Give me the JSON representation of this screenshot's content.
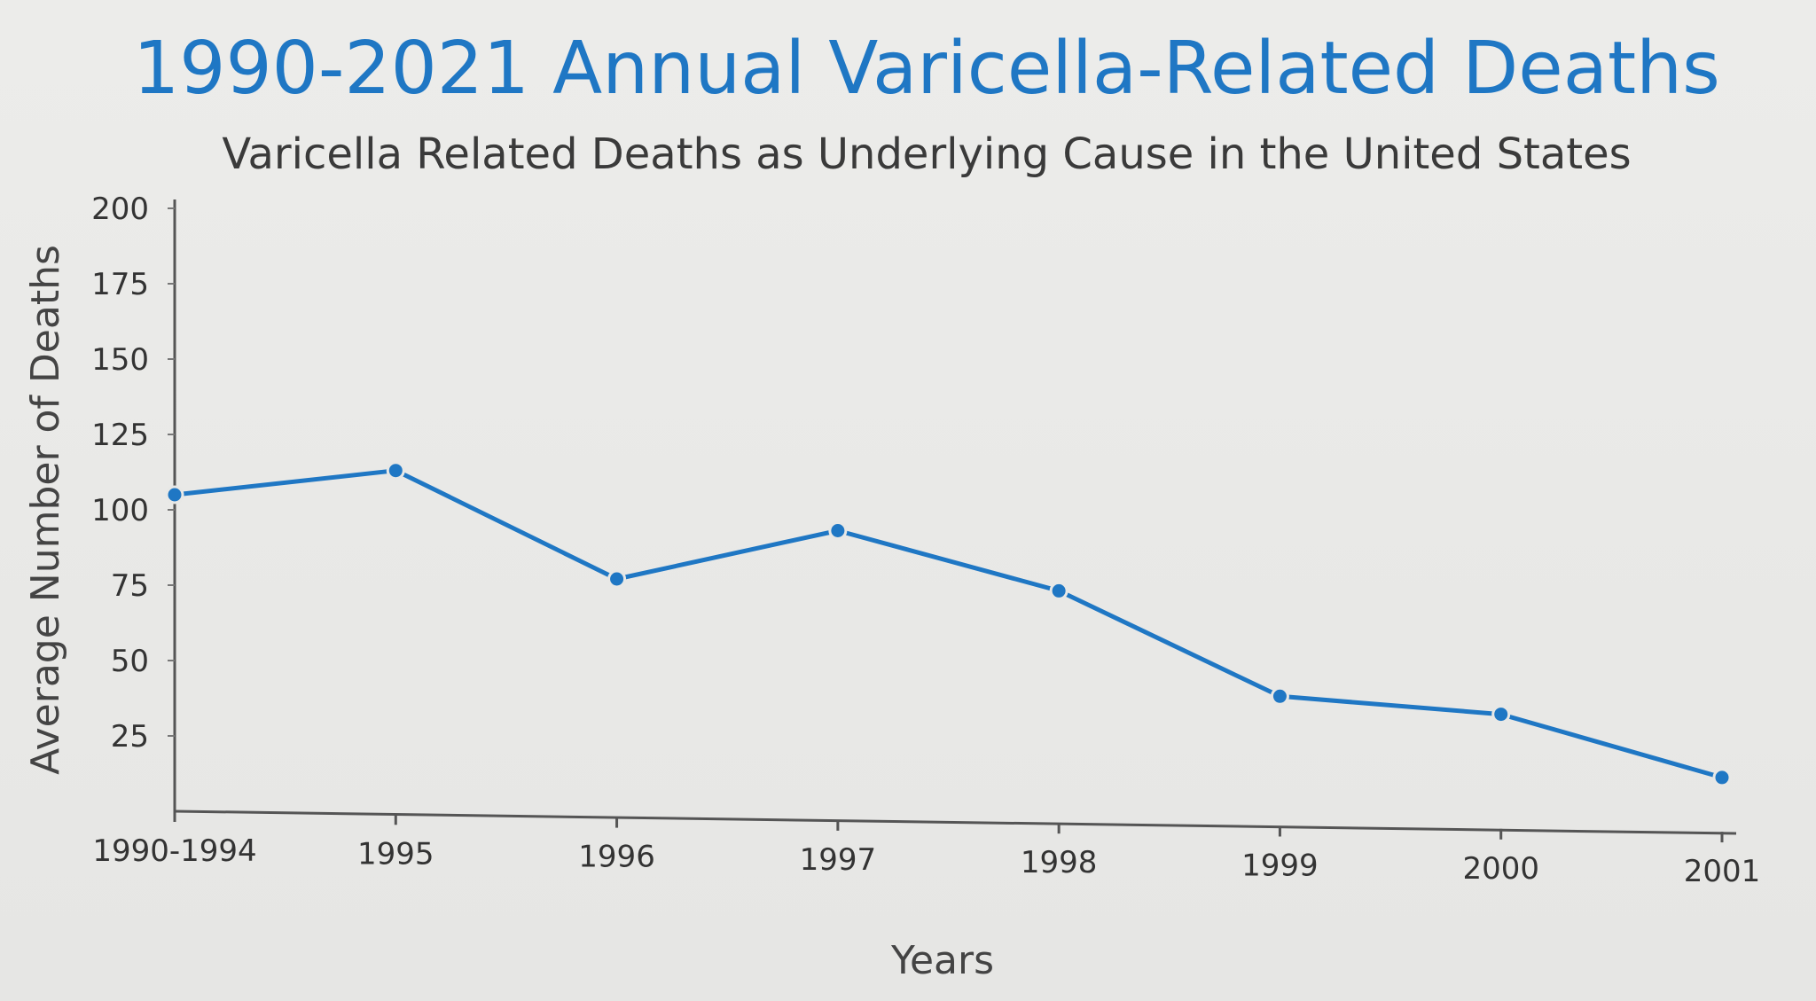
{
  "chart_data": {
    "type": "line",
    "title": "1990-2021 Annual Varicella-Related Deaths",
    "subtitle": "Varicella Related Deaths as Underlying Cause in the United States",
    "xlabel": "Years",
    "ylabel": "Average Number of Deaths",
    "ylim": [
      0,
      200
    ],
    "yticks": [
      25,
      50,
      75,
      100,
      125,
      150,
      175,
      200
    ],
    "categories": [
      "1990-1994",
      "1995",
      "1996",
      "1997",
      "1998",
      "1999",
      "2000",
      "2001"
    ],
    "series": [
      {
        "values": [
          105,
          114,
          79,
          96,
          77,
          43,
          38,
          18
        ]
      }
    ],
    "grid": false,
    "color": "#1f77c4"
  }
}
